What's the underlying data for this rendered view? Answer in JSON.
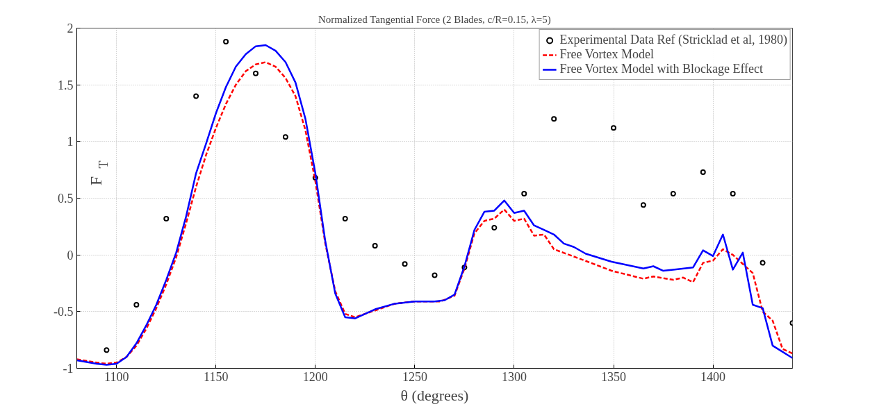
{
  "chart_data": {
    "type": "line",
    "title": "Normalized Tangential Force (2 Blades, c/R=0.15, λ=5)",
    "xlabel": "θ (degrees)",
    "ylabel": "F$_{T}$",
    "xlim": [
      1080,
      1440
    ],
    "ylim": [
      -1,
      2
    ],
    "xticks": [
      1100,
      1150,
      1200,
      1250,
      1300,
      1350,
      1400
    ],
    "yticks": [
      -1,
      -0.5,
      0,
      0.5,
      1,
      1.5,
      2
    ],
    "grid": true,
    "legend": "top right",
    "series": [
      {
        "name": "Experimental Data Ref (Stricklad et al, 1980)",
        "type": "scatter",
        "marker": "circle",
        "color": "#000000",
        "x": [
          1095,
          1110,
          1125,
          1140,
          1155,
          1170,
          1185,
          1200,
          1215,
          1230,
          1245,
          1260,
          1275,
          1290,
          1305,
          1320,
          1350,
          1365,
          1380,
          1395,
          1410,
          1425,
          1440
        ],
        "values": [
          -0.84,
          -0.44,
          0.32,
          1.4,
          1.88,
          1.6,
          1.04,
          0.68,
          0.32,
          0.08,
          -0.08,
          -0.18,
          -0.11,
          0.24,
          0.54,
          1.2,
          1.12,
          0.44,
          0.54,
          0.73,
          0.54,
          -0.07,
          -0.6
        ]
      },
      {
        "name": "Free Vortex Model",
        "type": "line",
        "line_style": "dashed",
        "color": "#ff0000",
        "x": [
          1080,
          1090,
          1095,
          1100,
          1105,
          1110,
          1115,
          1120,
          1125,
          1130,
          1135,
          1140,
          1145,
          1150,
          1155,
          1160,
          1165,
          1170,
          1175,
          1180,
          1185,
          1190,
          1195,
          1200,
          1205,
          1210,
          1215,
          1220,
          1230,
          1240,
          1250,
          1263,
          1270,
          1275,
          1280,
          1285,
          1290,
          1295,
          1300,
          1305,
          1310,
          1315,
          1320,
          1337,
          1349,
          1365,
          1370,
          1380,
          1385,
          1390,
          1395,
          1400,
          1405,
          1410,
          1420,
          1425,
          1430,
          1435,
          1440
        ],
        "values": [
          -0.92,
          -0.95,
          -0.96,
          -0.95,
          -0.9,
          -0.8,
          -0.65,
          -0.47,
          -0.26,
          -0.02,
          0.28,
          0.6,
          0.88,
          1.12,
          1.33,
          1.5,
          1.62,
          1.68,
          1.7,
          1.66,
          1.56,
          1.4,
          1.1,
          0.65,
          0.1,
          -0.32,
          -0.52,
          -0.55,
          -0.49,
          -0.43,
          -0.41,
          -0.41,
          -0.36,
          -0.12,
          0.19,
          0.3,
          0.32,
          0.4,
          0.3,
          0.32,
          0.17,
          0.18,
          0.05,
          -0.06,
          -0.14,
          -0.21,
          -0.19,
          -0.22,
          -0.2,
          -0.24,
          -0.07,
          -0.05,
          0.05,
          0.0,
          -0.16,
          -0.5,
          -0.58,
          -0.83,
          -0.87
        ]
      },
      {
        "name": "Free Vortex Model with Blockage Effect",
        "type": "line",
        "line_style": "solid",
        "color": "#0000ff",
        "x": [
          1080,
          1090,
          1095,
          1100,
          1105,
          1110,
          1115,
          1120,
          1125,
          1130,
          1135,
          1140,
          1145,
          1150,
          1155,
          1160,
          1165,
          1170,
          1175,
          1180,
          1185,
          1190,
          1195,
          1200,
          1205,
          1210,
          1215,
          1220,
          1225,
          1230,
          1240,
          1250,
          1260,
          1265,
          1270,
          1275,
          1280,
          1285,
          1290,
          1295,
          1300,
          1305,
          1310,
          1315,
          1320,
          1325,
          1330,
          1336,
          1349,
          1365,
          1370,
          1375,
          1380,
          1390,
          1395,
          1400,
          1405,
          1410,
          1415,
          1420,
          1425,
          1430,
          1440
        ],
        "values": [
          -0.93,
          -0.96,
          -0.97,
          -0.96,
          -0.9,
          -0.78,
          -0.62,
          -0.44,
          -0.22,
          0.02,
          0.34,
          0.72,
          0.98,
          1.25,
          1.48,
          1.66,
          1.77,
          1.84,
          1.85,
          1.8,
          1.7,
          1.52,
          1.2,
          0.72,
          0.12,
          -0.34,
          -0.55,
          -0.56,
          -0.52,
          -0.48,
          -0.43,
          -0.41,
          -0.41,
          -0.4,
          -0.35,
          -0.1,
          0.22,
          0.38,
          0.39,
          0.48,
          0.37,
          0.39,
          0.26,
          0.22,
          0.18,
          0.1,
          0.07,
          0.01,
          -0.06,
          -0.12,
          -0.1,
          -0.14,
          -0.13,
          -0.11,
          0.04,
          -0.01,
          0.18,
          -0.13,
          0.02,
          -0.44,
          -0.47,
          -0.8,
          -0.91
        ]
      }
    ]
  }
}
